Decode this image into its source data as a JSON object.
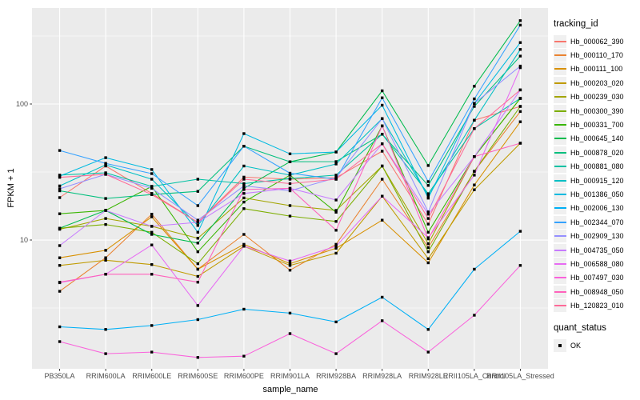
{
  "chart_data": {
    "type": "line",
    "title": "",
    "xlabel": "sample_name",
    "ylabel": "FPKM + 1",
    "x_categories": [
      "PB350LA",
      "RRIM600LA",
      "RRIM600LE",
      "RRIM600SE",
      "RRIM600PE",
      "RRIM901LA",
      "RRIM928BA",
      "RRIM928LA",
      "RRIM928LE",
      "RRII105LA_Control",
      "RRII105LA_Stressed"
    ],
    "y_axis": {
      "scale": "log10",
      "range": [
        1.13,
        508
      ],
      "major_ticks": [
        {
          "label": "10",
          "value": 10
        },
        {
          "label": "100",
          "value": 100
        }
      ],
      "minor_ticks": [
        3.162,
        31.62,
        316.2
      ]
    },
    "style": {
      "panel_bg": "#EBEBEB",
      "grid_color": "#FFFFFF",
      "axis_text_color": "#4D4D4D",
      "tick_mark_color": "#333333",
      "point_color": "#000000",
      "legend_key_bg": "#F0F0F0"
    },
    "point": {
      "shape": "square",
      "size": 3.4
    },
    "legend": {
      "title": "tracking_id",
      "position": "right"
    },
    "legend2": {
      "title": "quant_status",
      "items": [
        {
          "label": "OK",
          "marker": "black-square"
        }
      ]
    },
    "series": [
      {
        "name": "Hb_000062_390",
        "color": "#F8766D",
        "values": [
          20.5,
          35,
          22,
          13.5,
          29,
          28,
          28.7,
          45,
          13.1,
          76,
          96
        ]
      },
      {
        "name": "Hb_000110_170",
        "color": "#EA8331",
        "values": [
          4.2,
          7.4,
          15.5,
          6.1,
          11,
          6.0,
          9.3,
          28,
          8.8,
          32,
          88
        ]
      },
      {
        "name": "Hb_000111_100",
        "color": "#D89000",
        "values": [
          7.4,
          8.4,
          14.8,
          6.1,
          9.3,
          6.7,
          8.7,
          14,
          6.8,
          25.4,
          74
        ]
      },
      {
        "name": "Hb_000203_020",
        "color": "#C09B00",
        "values": [
          6.5,
          7.1,
          6.6,
          5.4,
          9.0,
          6.5,
          8.0,
          21,
          7.3,
          23.4,
          51.5
        ]
      },
      {
        "name": "Hb_000239_030",
        "color": "#A3A500",
        "values": [
          12.0,
          14.4,
          12.6,
          10.3,
          20.4,
          17.9,
          16.5,
          35,
          9.4,
          41,
          110
        ]
      },
      {
        "name": "Hb_000300_390",
        "color": "#7CAE00",
        "values": [
          12.2,
          13,
          11.4,
          6.7,
          17,
          15,
          13.7,
          35,
          8.2,
          32,
          96
        ]
      },
      {
        "name": "Hb_000331_700",
        "color": "#39B600",
        "values": [
          15.6,
          16.5,
          24.8,
          8.2,
          19,
          30,
          16,
          69,
          11.4,
          41,
          110
        ]
      },
      {
        "name": "Hb_000645_140",
        "color": "#00BB4E",
        "values": [
          12.2,
          16.5,
          11,
          9.5,
          24,
          37.6,
          44.4,
          125,
          35.3,
          135,
          410
        ]
      },
      {
        "name": "Hb_000878_020",
        "color": "#00BF7D",
        "values": [
          23,
          20.2,
          21.6,
          22.8,
          49,
          37.6,
          37.7,
          60,
          25.2,
          96,
          225
        ]
      },
      {
        "name": "Hb_000881_080",
        "color": "#00C1A3",
        "values": [
          30,
          31.2,
          24.8,
          28.0,
          26,
          28.3,
          30,
          60,
          21.9,
          66,
          110
        ]
      },
      {
        "name": "Hb_000915_120",
        "color": "#00BFC4",
        "values": [
          25,
          35.7,
          28,
          12.8,
          35,
          30,
          36.2,
          78,
          21.0,
          76,
          252
        ]
      },
      {
        "name": "Hb_001386_050",
        "color": "#00BAE0",
        "values": [
          29.5,
          40.3,
          33,
          11.4,
          60.6,
          43,
          44.4,
          98,
          20.3,
          101,
          283
        ]
      },
      {
        "name": "Hb_002006_130",
        "color": "#00B0F6",
        "values": [
          2.3,
          2.2,
          2.35,
          2.6,
          3.1,
          2.9,
          2.5,
          3.8,
          2.2,
          6.1,
          11.6
        ]
      },
      {
        "name": "Hb_002344_070",
        "color": "#35A2FF",
        "values": [
          45.5,
          36.6,
          30.8,
          17.9,
          49,
          31,
          28,
          111,
          26.9,
          109,
          380
        ]
      },
      {
        "name": "Hb_002909_130",
        "color": "#9590FF",
        "values": [
          23.8,
          30.4,
          24,
          14.0,
          25,
          23,
          28.7,
          78,
          16.1,
          101,
          190
        ]
      },
      {
        "name": "Hb_004735_050",
        "color": "#C77CFF",
        "values": [
          9.1,
          16.5,
          12.6,
          13.5,
          22,
          24,
          19.7,
          51,
          15.5,
          41,
          127
        ]
      },
      {
        "name": "Hb_006588_080",
        "color": "#E76BF3",
        "values": [
          4.85,
          5.6,
          9.2,
          3.3,
          9.0,
          7.0,
          9.0,
          21,
          10.4,
          30,
          185
        ]
      },
      {
        "name": "Hb_007497_030",
        "color": "#FA62DB",
        "values": [
          1.79,
          1.46,
          1.5,
          1.37,
          1.4,
          2.05,
          1.46,
          2.55,
          1.5,
          2.8,
          6.5
        ]
      },
      {
        "name": "Hb_008948_050",
        "color": "#FF62BC",
        "values": [
          4.9,
          5.6,
          5.6,
          4.9,
          23.5,
          24,
          11.8,
          69,
          10.2,
          41,
          51.5
        ]
      },
      {
        "name": "Hb_120823_010",
        "color": "#FF6A98",
        "values": [
          28.9,
          30.4,
          21.6,
          13.5,
          28,
          26,
          28,
          51,
          14.4,
          66,
          127
        ]
      }
    ]
  }
}
